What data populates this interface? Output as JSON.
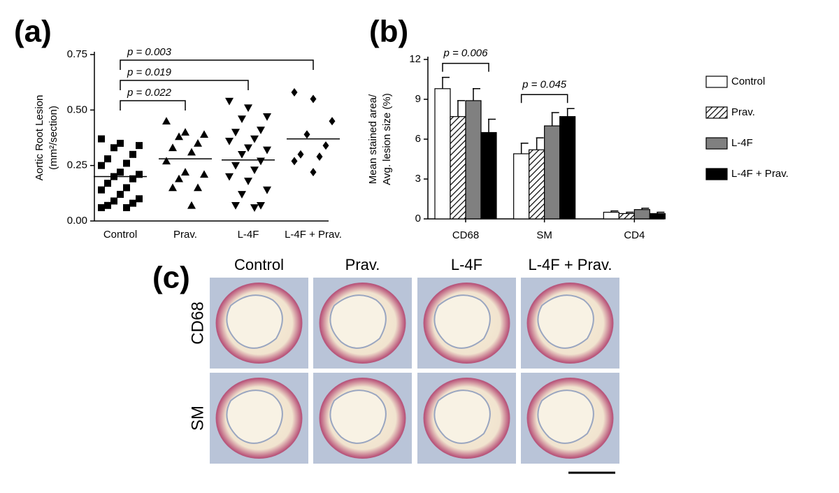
{
  "panel_labels": [
    "(a)",
    "(b)",
    "(c)"
  ],
  "chart_data": [
    {
      "type": "scatter",
      "ylabel": [
        "Aortic Root Lesion",
        "(mm²/section)"
      ],
      "categories": [
        "Control",
        "Prav.",
        "L-4F",
        "L-4F + Prav."
      ],
      "markers": [
        "square",
        "triangle",
        "triangle-down",
        "diamond"
      ],
      "color": "#000000",
      "values": [
        [
          0.37,
          0.35,
          0.34,
          0.33,
          0.3,
          0.28,
          0.26,
          0.25,
          0.22,
          0.21,
          0.2,
          0.19,
          0.17,
          0.15,
          0.14,
          0.12,
          0.1,
          0.09,
          0.08,
          0.07,
          0.06,
          0.06
        ],
        [
          0.45,
          0.4,
          0.39,
          0.38,
          0.35,
          0.33,
          0.31,
          0.27,
          0.22,
          0.21,
          0.19,
          0.15,
          0.15,
          0.07
        ],
        [
          0.54,
          0.51,
          0.47,
          0.46,
          0.41,
          0.4,
          0.37,
          0.36,
          0.33,
          0.32,
          0.3,
          0.27,
          0.25,
          0.23,
          0.2,
          0.18,
          0.14,
          0.12,
          0.07,
          0.07,
          0.06
        ],
        [
          0.58,
          0.55,
          0.45,
          0.39,
          0.34,
          0.3,
          0.29,
          0.27,
          0.22
        ]
      ],
      "means": [
        0.2,
        0.28,
        0.275,
        0.37
      ],
      "ylim": [
        0,
        0.75
      ],
      "yticks": [
        {
          "value": 0,
          "label": "0.00"
        },
        {
          "value": 0.25,
          "label": "0.25"
        },
        {
          "value": 0.5,
          "label": "0.50"
        },
        {
          "value": 0.75,
          "label": "0.75"
        }
      ],
      "annotations": [
        {
          "text": "p = 0.003",
          "from": "Control",
          "to": "L-4F + Prav."
        },
        {
          "text": "p = 0.019",
          "from": "Control",
          "to": "L-4F"
        },
        {
          "text": "p = 0.022",
          "from": "Control",
          "to": "Prav."
        }
      ]
    },
    {
      "type": "bar",
      "ylabel": [
        "Mean stained area/",
        "Avg. lesion size (%)"
      ],
      "categories": [
        "CD68",
        "SM",
        "CD4"
      ],
      "series": [
        {
          "name": "Control",
          "color": "#ffffff",
          "values": [
            9.8,
            4.9,
            0.5
          ],
          "errors": [
            0.85,
            0.8,
            0.1
          ]
        },
        {
          "name": "Prav.",
          "color": "#ffffff",
          "pattern": "hatch",
          "values": [
            7.7,
            5.2,
            0.4
          ],
          "errors": [
            1.2,
            0.9,
            0.1
          ]
        },
        {
          "name": "L-4F",
          "color": "#808080",
          "values": [
            8.9,
            7.0,
            0.7
          ],
          "errors": [
            0.9,
            1.0,
            0.1
          ]
        },
        {
          "name": "L-4F + Prav.",
          "color": "#000000",
          "values": [
            6.5,
            7.7,
            0.4
          ],
          "errors": [
            1.0,
            0.6,
            0.1
          ]
        }
      ],
      "ylim": [
        0,
        12
      ],
      "yticks": [
        0,
        3,
        6,
        9,
        12
      ],
      "legend": "right",
      "annotations": [
        {
          "text": "p = 0.006",
          "category": "CD68"
        },
        {
          "text": "p = 0.045",
          "category": "SM"
        }
      ]
    }
  ],
  "panel_c": {
    "columns": [
      "Control",
      "Prav.",
      "L-4F",
      "L-4F + Prav."
    ],
    "rows": [
      "CD68",
      "SM"
    ]
  }
}
